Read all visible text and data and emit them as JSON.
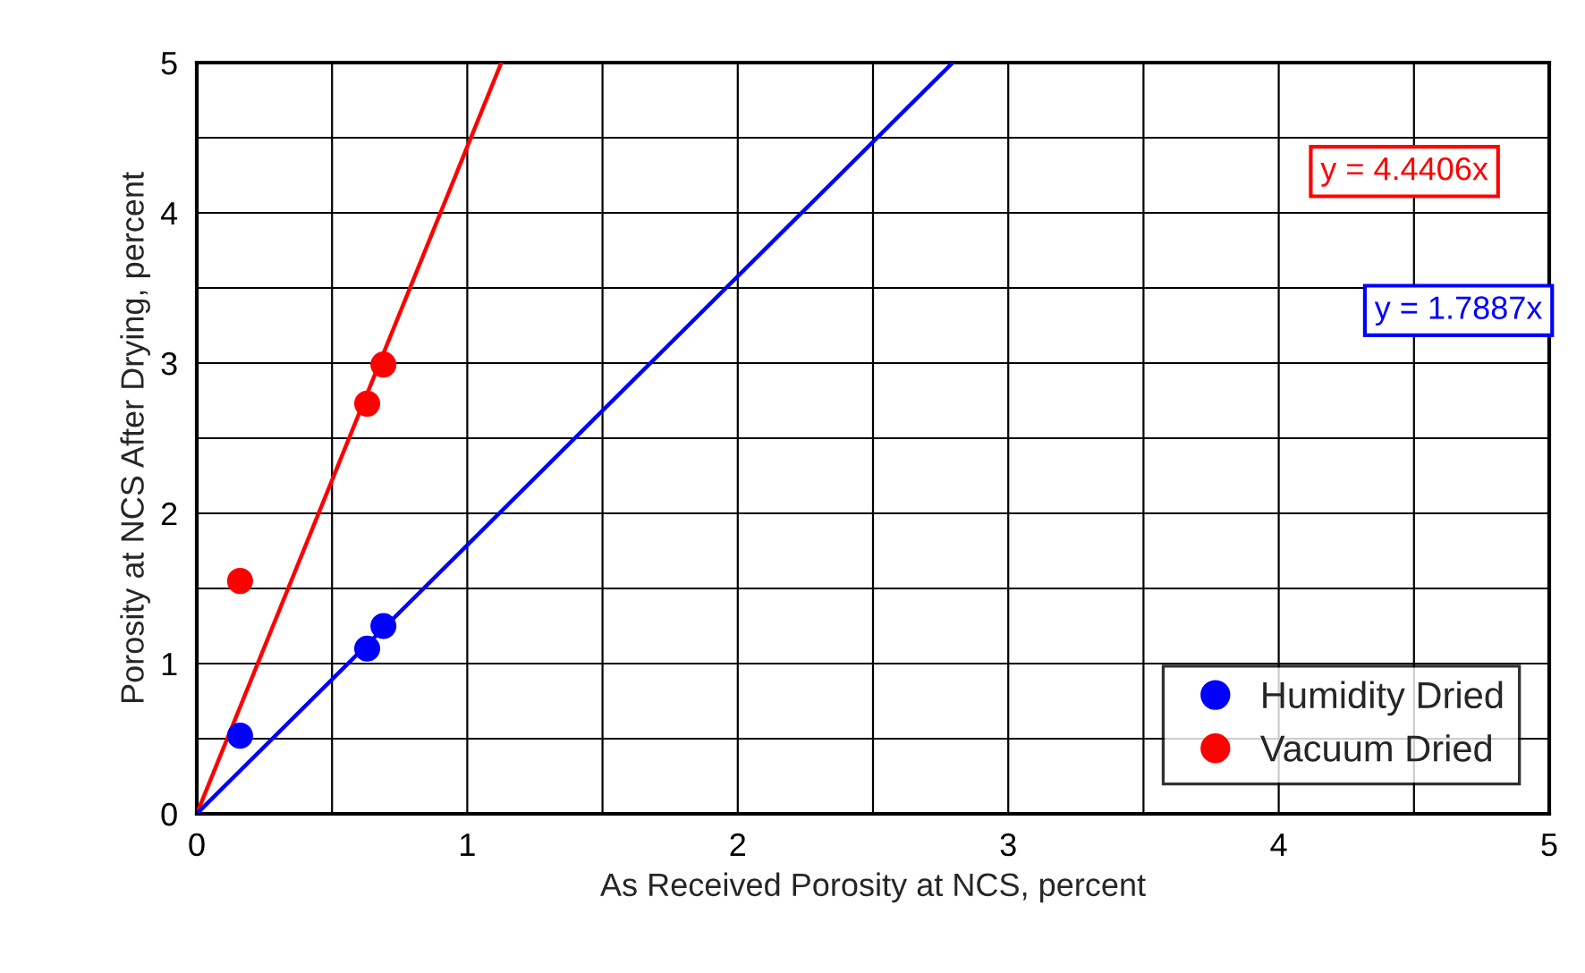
{
  "chart_data": {
    "type": "scatter",
    "xlabel": "As Received Porosity at NCS, percent",
    "ylabel": "Porosity at NCS After Drying, percent",
    "xlim": [
      0,
      5
    ],
    "ylim": [
      0,
      5
    ],
    "xticks": [
      0,
      {
        "value": 0.5,
        "label": null
      },
      1,
      {
        "value": 1.5,
        "label": null
      },
      2,
      {
        "value": 2.5,
        "label": null
      },
      3,
      {
        "value": 3.5,
        "label": null
      },
      4,
      {
        "value": 4.5,
        "label": null
      },
      5
    ],
    "yticks": [
      0,
      {
        "value": 0.5,
        "label": null
      },
      1,
      {
        "value": 1.5,
        "label": null
      },
      2,
      {
        "value": 2.5,
        "label": null
      },
      3,
      {
        "value": 3.5,
        "label": null
      },
      4,
      {
        "value": 4.5,
        "label": null
      },
      5
    ],
    "grid": true,
    "legend": "bottom right",
    "marker": "circle",
    "series": [
      {
        "name": "Humidity Dried",
        "color": "#0000ff",
        "x": [
          0.16,
          0.63,
          0.69
        ],
        "values": [
          0.52,
          1.1,
          1.25
        ]
      },
      {
        "name": "Vacuum Dried",
        "color": "#ff0000",
        "x": [
          0.16,
          0.63,
          0.69
        ],
        "values": [
          1.55,
          2.73,
          2.99
        ]
      },
      {
        "type": "line",
        "marker": "none",
        "color": "#ff0000",
        "x": [
          0,
          1.126
        ],
        "values": [
          0,
          5
        ]
      },
      {
        "type": "line",
        "marker": "none",
        "color": "#0000ff",
        "x": [
          0,
          2.795
        ],
        "values": [
          0,
          5
        ]
      }
    ],
    "annotations": [
      "y = 4.4406x",
      "y = 1.7887x"
    ]
  }
}
